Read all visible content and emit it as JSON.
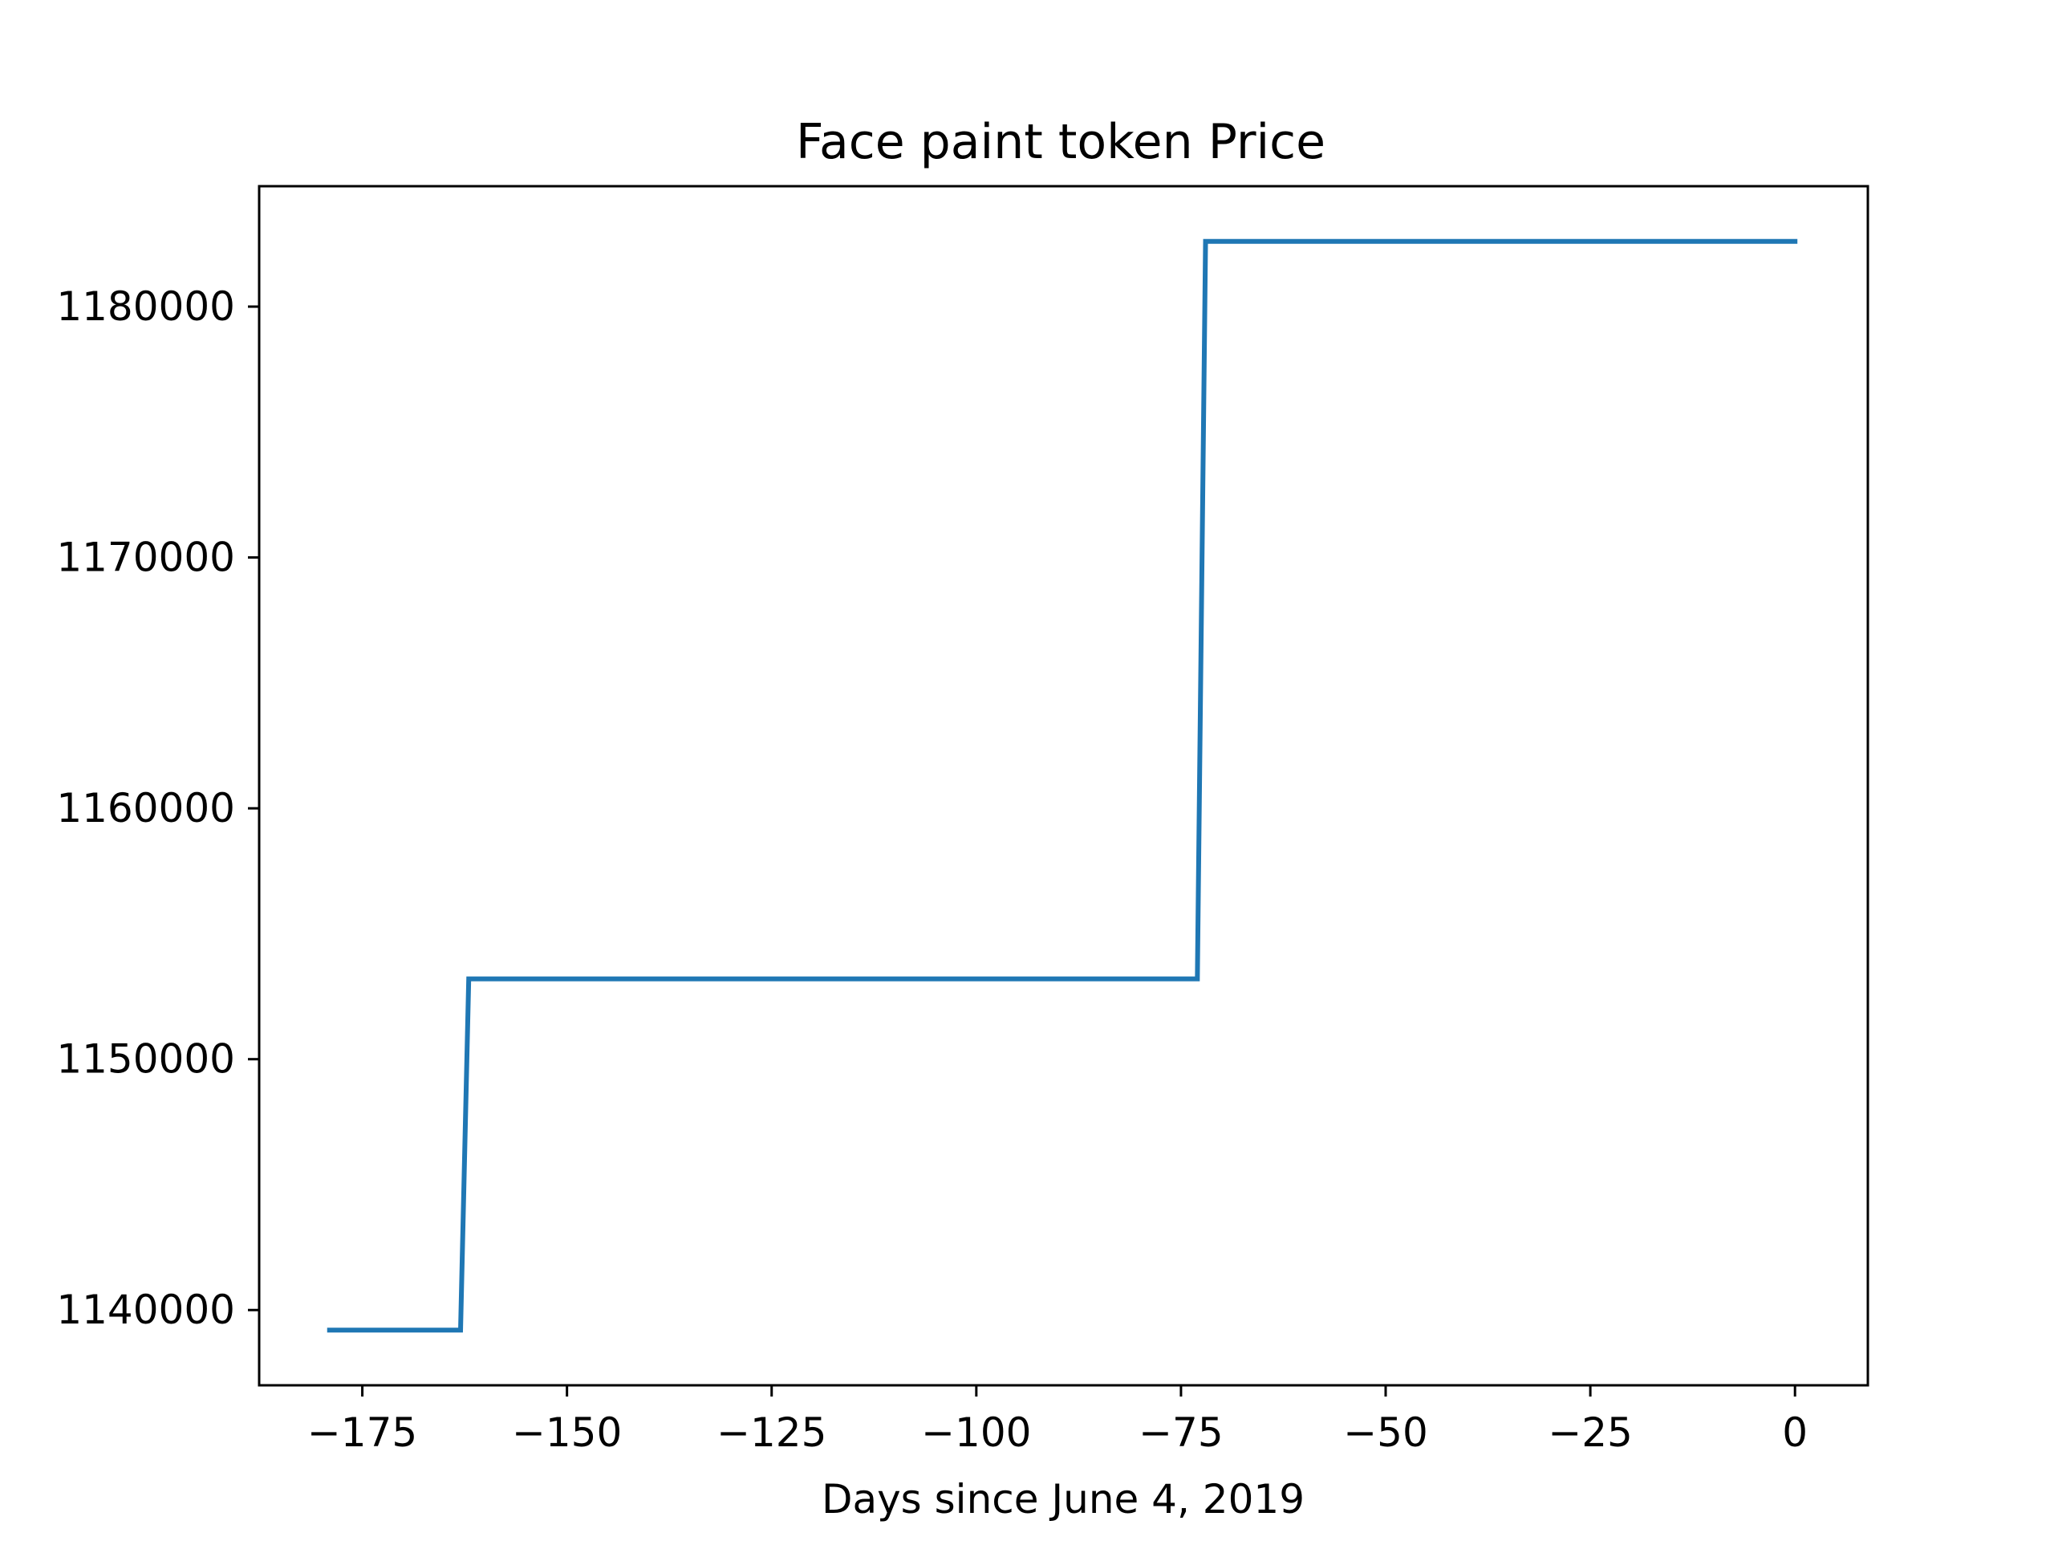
{
  "chart_data": {
    "type": "line",
    "title": "Face paint token Price",
    "xlabel": "Days since June 4, 2019",
    "ylabel": "",
    "xlim": [
      -187.6,
      8.9
    ],
    "ylim": [
      1137000,
      1184800
    ],
    "xticks": [
      -175,
      -150,
      -125,
      -100,
      -75,
      -50,
      -25,
      0
    ],
    "xtick_labels": [
      "−175",
      "−150",
      "−125",
      "−100",
      "−75",
      "−50",
      "−25",
      "0"
    ],
    "yticks": [
      1140000,
      1150000,
      1160000,
      1170000,
      1180000
    ],
    "ytick_labels": [
      "1140000",
      "1150000",
      "1160000",
      "1170000",
      "1180000"
    ],
    "grid": false,
    "series": [
      {
        "color": "#1f77b4",
        "x": [
          -179,
          -163,
          -162,
          -73,
          -72,
          0
        ],
        "y": [
          1139200,
          1139200,
          1153200,
          1153200,
          1182600,
          1182600
        ]
      }
    ]
  }
}
